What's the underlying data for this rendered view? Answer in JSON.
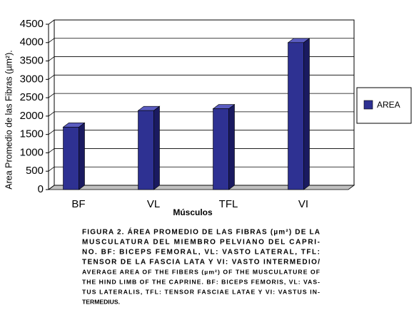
{
  "chart_data": {
    "type": "bar3d",
    "y_label": "Area Promedio de las Fibras (µm²).",
    "x_label": "Músculos",
    "categories": [
      "BF",
      "VL",
      "TFL",
      "VI"
    ],
    "series": [
      {
        "name": "AREA",
        "color": "#2e3192",
        "values": [
          1700,
          2150,
          2200,
          4000
        ]
      }
    ],
    "ylim": [
      0,
      4500
    ],
    "yticks": [
      0,
      500,
      1000,
      1500,
      2000,
      2500,
      3000,
      3500,
      4000,
      4500
    ],
    "grid": true,
    "legend": "right"
  },
  "caption": [
    "FIGURA 2. ÁREA PROMEDIO DE LAS FIBRAS (µm²) DE LA",
    "MUSCULATURA DEL MIEMBRO PELVIANO DEL CAPRI-",
    "NO. BF: BICEPS FEMORAL, VL: VASTO LATERAL, TFL:",
    "TENSOR DE LA FASCIA LATA Y VI: VASTO INTERMEDIO/",
    "AVERAGE AREA OF THE FIBERS (µm²) OF THE MUSCULATURE OF",
    "THE HIND LIMB OF THE CAPRINE. BF: BICEPS FEMORIS, VL: VAS-",
    "TUS LATERALIS, TFL: TENSOR FASCIAE LATAE Y VI: VASTUS IN-",
    "TERMEDIUS."
  ]
}
